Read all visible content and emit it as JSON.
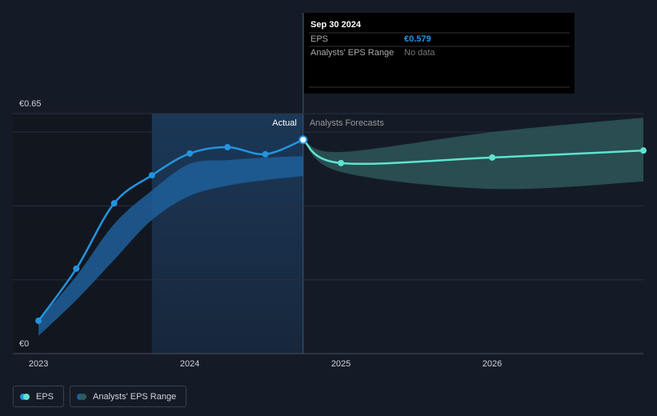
{
  "chart_data": {
    "type": "line",
    "xlim": [
      2022.83,
      2027
    ],
    "xticks": [
      2023,
      2024,
      2025,
      2026
    ],
    "ylim": [
      0,
      0.65
    ],
    "yticks": [
      {
        "value": 0,
        "label": "€0"
      },
      {
        "value": 0.65,
        "label": "€0.65"
      }
    ],
    "gridlines": [
      0.2,
      0.4,
      0.6
    ],
    "highlight_range": [
      2023.75,
      2024.75
    ],
    "annotations": [
      "Actual",
      "Analysts Forecasts"
    ],
    "x": [
      2023,
      2023.25,
      2023.5,
      2023.75,
      2024,
      2024.25,
      2024.5,
      2024.75,
      2025,
      2026,
      2027
    ],
    "series": [
      {
        "name": "EPS",
        "color": "#2394df",
        "forecast_color": "#5ee3d1",
        "values": [
          0.089,
          0.23,
          0.407,
          0.483,
          0.542,
          0.559,
          0.54,
          0.579,
          null,
          null,
          null
        ],
        "forecast_values": [
          null,
          null,
          null,
          null,
          null,
          null,
          null,
          0.579,
          0.516,
          0.531,
          0.55
        ]
      },
      {
        "name": "Analysts' EPS Range",
        "color": "#1f5f9a",
        "forecast_color": "#2e5a5b",
        "lower": [
          0.048,
          0.145,
          0.254,
          0.362,
          0.427,
          0.455,
          0.47,
          0.481,
          null,
          null,
          null
        ],
        "upper": [
          0.091,
          0.21,
          0.351,
          0.442,
          0.514,
          0.524,
          0.531,
          0.535,
          null,
          null,
          null
        ],
        "forecast_lower": [
          null,
          null,
          null,
          null,
          null,
          null,
          null,
          0.579,
          0.492,
          0.446,
          0.466
        ],
        "forecast_upper": [
          null,
          null,
          null,
          null,
          null,
          null,
          null,
          0.579,
          0.546,
          0.6,
          0.639
        ]
      }
    ]
  },
  "tooltip": {
    "title": "Sep 30 2024",
    "rows": [
      {
        "label": "EPS",
        "value": "€0.579"
      },
      {
        "label": "Analysts' EPS Range",
        "value": "No data"
      }
    ]
  }
}
